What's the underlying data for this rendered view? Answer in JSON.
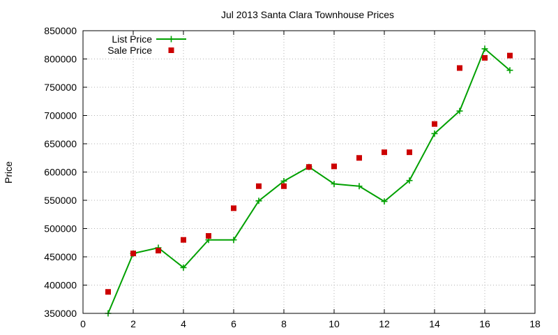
{
  "chart_data": {
    "type": "line",
    "title": "Jul 2013 Santa Clara Townhouse Prices",
    "xlabel": "",
    "ylabel": "Price",
    "xlim": [
      0,
      18
    ],
    "ylim": [
      350000,
      850000
    ],
    "xticks": [
      0,
      2,
      4,
      6,
      8,
      10,
      12,
      14,
      16,
      18
    ],
    "yticks": [
      350000,
      400000,
      450000,
      500000,
      550000,
      600000,
      650000,
      700000,
      750000,
      800000,
      850000
    ],
    "grid": true,
    "legend_position": "top-left",
    "series": [
      {
        "name": "List Price",
        "style": "line-with-plus-markers",
        "color": "#00a000",
        "x": [
          1,
          2,
          3,
          4,
          5,
          6,
          7,
          8,
          9,
          10,
          11,
          12,
          13,
          14,
          15,
          16,
          17
        ],
        "y": [
          350000,
          456000,
          466000,
          431000,
          480000,
          480000,
          549000,
          584000,
          609000,
          579000,
          575000,
          548000,
          585000,
          668000,
          708000,
          818000,
          780000
        ]
      },
      {
        "name": "Sale Price",
        "style": "square-markers",
        "color": "#cc0000",
        "x": [
          1,
          2,
          3,
          4,
          5,
          6,
          7,
          8,
          9,
          10,
          11,
          12,
          13,
          14,
          15,
          16,
          17
        ],
        "y": [
          388000,
          456000,
          461000,
          480000,
          487000,
          536000,
          575000,
          575000,
          609000,
          610000,
          625000,
          635000,
          635000,
          685000,
          784000,
          802000,
          806000
        ]
      }
    ]
  }
}
